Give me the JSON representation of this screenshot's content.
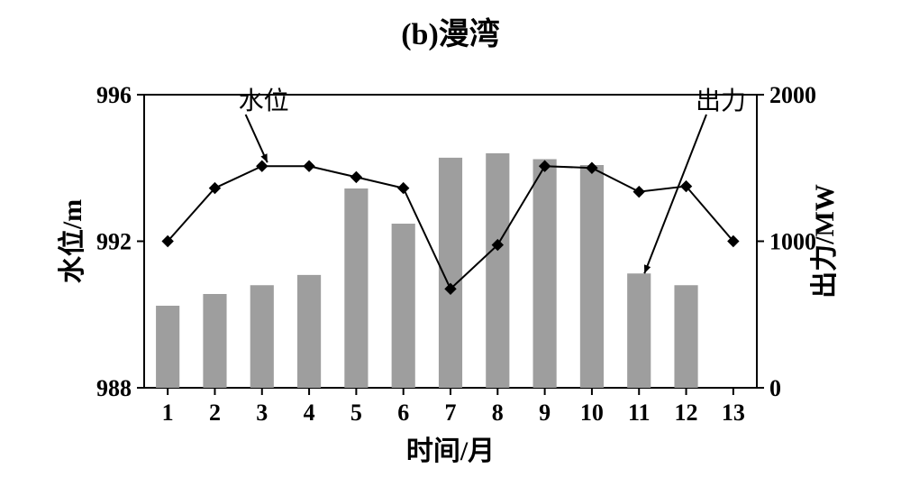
{
  "title": "(b)漫湾",
  "chart": {
    "type": "bar+line",
    "background_color": "#ffffff",
    "plot_border_color": "#000000",
    "plot_border_width": 2,
    "x_axis": {
      "label": "时间/月",
      "categories": [
        "1",
        "2",
        "3",
        "4",
        "5",
        "6",
        "7",
        "8",
        "9",
        "10",
        "11",
        "12",
        "13"
      ],
      "tick_fontsize": 26,
      "label_fontsize": 30
    },
    "y_left": {
      "label": "水位/m",
      "min": 988,
      "max": 996,
      "ticks": [
        988,
        992,
        996
      ],
      "tick_fontsize": 26,
      "label_fontsize": 30
    },
    "y_right": {
      "label": "出力/MW",
      "min": 0,
      "max": 2000,
      "ticks": [
        0,
        1000,
        2000
      ],
      "tick_fontsize": 26,
      "label_fontsize": 30
    },
    "bars": {
      "axis": "right",
      "color": "#9e9e9e",
      "width_frac": 0.5,
      "values": [
        560,
        640,
        700,
        770,
        1360,
        1120,
        1570,
        1600,
        1560,
        1520,
        780,
        700,
        0
      ]
    },
    "line": {
      "axis": "left",
      "color": "#000000",
      "line_width": 2,
      "marker": "diamond",
      "marker_size": 6,
      "values": [
        992.0,
        993.45,
        994.05,
        994.05,
        993.75,
        993.45,
        990.7,
        991.9,
        994.05,
        994.0,
        993.35,
        993.5,
        992.0
      ]
    },
    "annotations": {
      "level_label": "水位",
      "output_label": "出力",
      "fontsize": 28
    }
  }
}
